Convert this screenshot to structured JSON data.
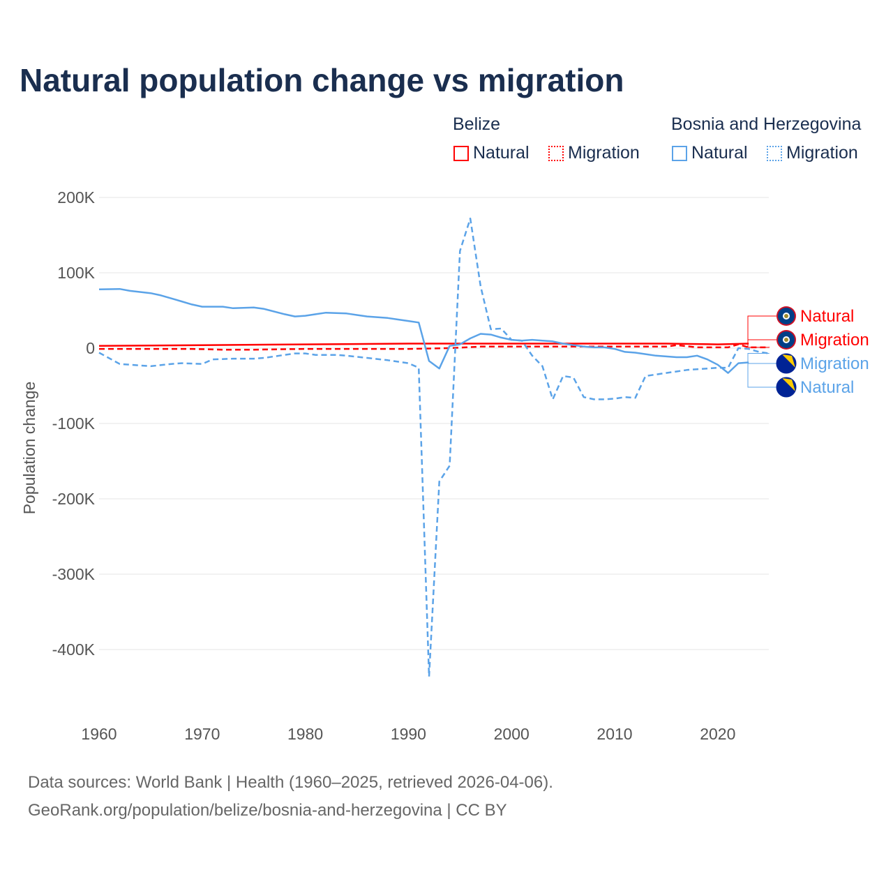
{
  "chart_data": {
    "type": "line",
    "title": "Natural population change vs migration",
    "ylabel": "Population change",
    "xlabel": "",
    "xlim": [
      1960,
      2025
    ],
    "ylim": [
      -450000,
      200000
    ],
    "x_ticks": [
      1960,
      1970,
      1980,
      1990,
      2000,
      2010,
      2020
    ],
    "x_tick_labels": [
      "1960",
      "1970",
      "1980",
      "1990",
      "2000",
      "2010",
      "2020"
    ],
    "y_ticks": [
      200000,
      100000,
      0,
      -100000,
      -200000,
      -300000,
      -400000
    ],
    "y_tick_labels": [
      "200K",
      "100K",
      "0",
      "-100K",
      "-200K",
      "-300K",
      "-400K"
    ],
    "grid": true,
    "legend_groups": [
      {
        "country": "Belize",
        "items": [
          "Natural",
          "Migration"
        ]
      },
      {
        "country": "Bosnia and Herzegovina",
        "items": [
          "Natural",
          "Migration"
        ]
      }
    ],
    "legend_placement": "top-right",
    "series": [
      {
        "name": "Natural",
        "country": "Belize",
        "color": "#ff0000",
        "dash": false,
        "x": [
          1960,
          1970,
          1980,
          1990,
          2000,
          2010,
          2015,
          2020,
          2023
        ],
        "values": [
          3000,
          4000,
          5000,
          6000,
          6000,
          6000,
          6000,
          5000,
          6000
        ]
      },
      {
        "name": "Migration",
        "country": "Belize",
        "color": "#ff0000",
        "dash": true,
        "x": [
          1960,
          1969,
          1972,
          1975,
          1980,
          1990,
          1994,
          1997,
          2000,
          2015,
          2016,
          2018,
          2021,
          2022,
          2023,
          2025
        ],
        "values": [
          -1000,
          -1000,
          -2000,
          -2000,
          -1000,
          -1000,
          0,
          2000,
          2000,
          2000,
          4000,
          1000,
          1000,
          5000,
          1000,
          1000
        ]
      },
      {
        "name": "Migration",
        "country": "Bosnia and Herzegovina",
        "color": "#5ba3e8",
        "dash": true,
        "x": [
          1960,
          1962,
          1965,
          1967,
          1968,
          1970,
          1971,
          1973,
          1975,
          1976,
          1978,
          1979,
          1980,
          1981,
          1983,
          1984,
          1986,
          1988,
          1990,
          1991,
          1992,
          1993,
          1994,
          1995,
          1996,
          1997,
          1998,
          1999,
          2000,
          2001,
          2002,
          2003,
          2004,
          2005,
          2006,
          2007,
          2008,
          2009,
          2010,
          2011,
          2012,
          2013,
          2014,
          2015,
          2016,
          2017,
          2018,
          2019,
          2020,
          2021,
          2022,
          2023,
          2024,
          2025
        ],
        "values": [
          -6000,
          -21000,
          -24000,
          -21000,
          -20000,
          -21000,
          -15000,
          -14000,
          -14000,
          -13000,
          -9000,
          -7000,
          -7000,
          -9000,
          -9000,
          -10000,
          -13000,
          -16000,
          -20000,
          -26000,
          -436000,
          -177000,
          -156000,
          129000,
          172000,
          82000,
          25000,
          26000,
          11000,
          10000,
          -10000,
          -24000,
          -68000,
          -37000,
          -39000,
          -65000,
          -68000,
          -68000,
          -67000,
          -65000,
          -66000,
          -37000,
          -35000,
          -33000,
          -31000,
          -29000,
          -28000,
          -27000,
          -26000,
          -26000,
          0,
          -1000,
          -5000,
          -7000
        ]
      },
      {
        "name": "Natural",
        "country": "Bosnia and Herzegovina",
        "color": "#5ba3e8",
        "dash": false,
        "x": [
          1960,
          1962,
          1963,
          1965,
          1966,
          1968,
          1969,
          1970,
          1972,
          1973,
          1975,
          1976,
          1978,
          1979,
          1980,
          1981,
          1982,
          1984,
          1985,
          1986,
          1988,
          1989,
          1990,
          1991,
          1992,
          1993,
          1994,
          1995,
          1996,
          1997,
          1998,
          1999,
          2000,
          2001,
          2002,
          2003,
          2004,
          2005,
          2006,
          2007,
          2008,
          2009,
          2010,
          2011,
          2012,
          2013,
          2014,
          2015,
          2016,
          2017,
          2018,
          2019,
          2020,
          2021,
          2022,
          2023
        ],
        "values": [
          78000,
          78500,
          76000,
          73000,
          70000,
          62000,
          58000,
          55000,
          55000,
          53000,
          54000,
          52000,
          45000,
          42000,
          43000,
          45000,
          47000,
          46000,
          44000,
          42000,
          40000,
          38000,
          36000,
          34000,
          -17000,
          -27000,
          3000,
          5000,
          13000,
          19000,
          18000,
          14000,
          11000,
          10000,
          11000,
          10000,
          9000,
          6000,
          4000,
          2000,
          1000,
          1000,
          -1000,
          -5000,
          -6000,
          -8000,
          -10000,
          -11000,
          -12000,
          -12000,
          -10000,
          -15000,
          -22000,
          -33000,
          -20000,
          -19000
        ]
      }
    ],
    "end_labels": [
      {
        "text": "Natural",
        "country": "Belize",
        "color": "#ff0000",
        "flag": "belize-flag"
      },
      {
        "text": "Migration",
        "country": "Belize",
        "color": "#ff0000",
        "flag": "belize-flag"
      },
      {
        "text": "Migration",
        "country": "Bosnia and Herzegovina",
        "color": "#5ba3e8",
        "flag": "bosnia-flag"
      },
      {
        "text": "Natural",
        "country": "Bosnia and Herzegovina",
        "color": "#5ba3e8",
        "flag": "bosnia-flag"
      }
    ]
  },
  "legend": {
    "belize": "Belize",
    "bosnia": "Bosnia and Herzegovina",
    "natural": "Natural",
    "migration": "Migration"
  },
  "footer": {
    "line1": "Data sources: World Bank | Health (1960–2025, retrieved 2026-04-06).",
    "line2": "GeoRank.org/population/belize/bosnia-and-herzegovina | CC BY"
  }
}
